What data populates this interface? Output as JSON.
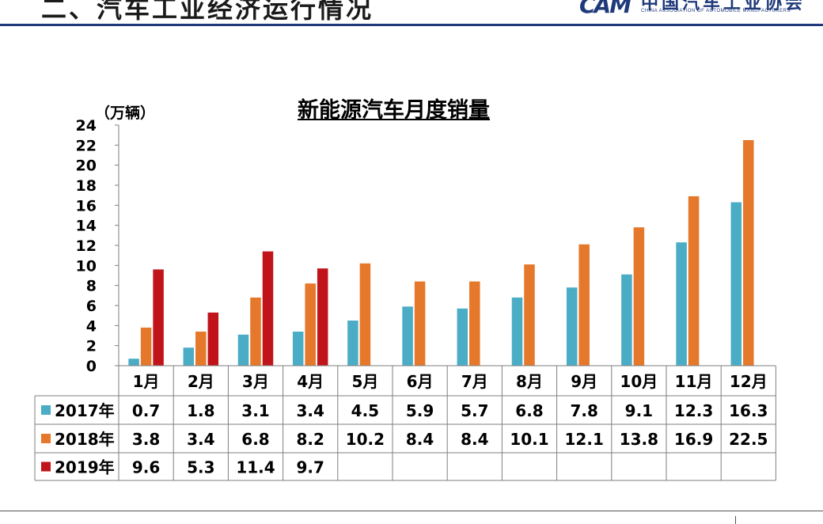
{
  "header": {
    "title": "二、汽车工业经济运行情况",
    "logo_mark": "CAM",
    "logo_cn": "中国汽车工业协会",
    "logo_en": "CHINA ASSOCIATION OF AUTOMOBILE MANUFACTURERS"
  },
  "colors": {
    "header_accent": "#1f3a7a",
    "series_2017": "#4bacc6",
    "series_2018": "#e5782a",
    "series_2019": "#c0141a"
  },
  "chart_data": {
    "type": "bar",
    "title": "新能源汽车月度销量",
    "ylabel": "（万辆）",
    "xlabel": "",
    "ylim": [
      0,
      24
    ],
    "yticks": [
      0,
      2,
      4,
      6,
      8,
      10,
      12,
      14,
      16,
      18,
      20,
      22,
      24
    ],
    "grid": false,
    "legend": "data-table",
    "categories": [
      "1月",
      "2月",
      "3月",
      "4月",
      "5月",
      "6月",
      "7月",
      "8月",
      "9月",
      "10月",
      "11月",
      "12月"
    ],
    "series": [
      {
        "name": "2017年",
        "color": "#4bacc6",
        "values": [
          0.7,
          1.8,
          3.1,
          3.4,
          4.5,
          5.9,
          5.7,
          6.8,
          7.8,
          9.1,
          12.3,
          16.3
        ]
      },
      {
        "name": "2018年",
        "color": "#e5782a",
        "values": [
          3.8,
          3.4,
          6.8,
          8.2,
          10.2,
          8.4,
          8.4,
          10.1,
          12.1,
          13.8,
          16.9,
          22.5
        ]
      },
      {
        "name": "2019年",
        "color": "#c0141a",
        "values": [
          9.6,
          5.3,
          11.4,
          9.7,
          null,
          null,
          null,
          null,
          null,
          null,
          null,
          null
        ]
      }
    ]
  }
}
